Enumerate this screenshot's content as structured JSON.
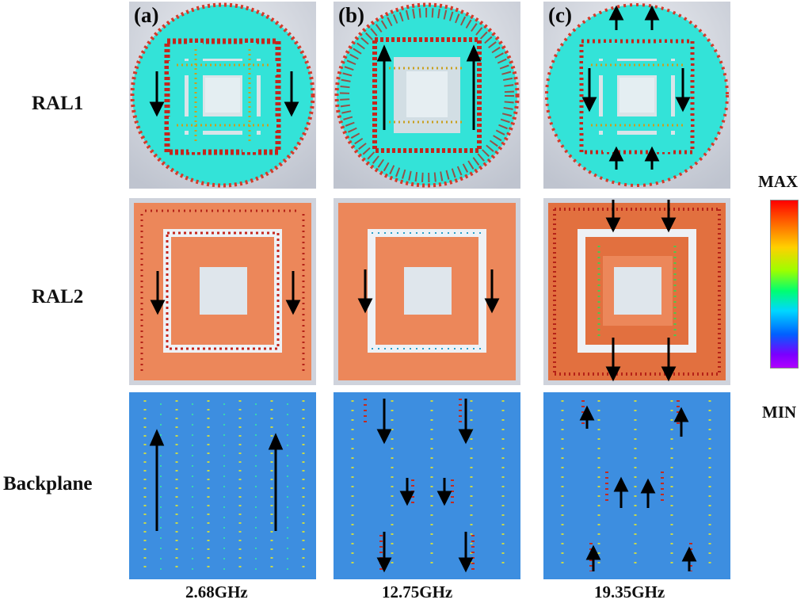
{
  "rows": [
    {
      "label": "RAL1",
      "icon": "circular-patch-current-map"
    },
    {
      "label": "RAL2",
      "icon": "square-ring-current-map"
    },
    {
      "label": "Backplane",
      "icon": "ground-plane-current-map"
    }
  ],
  "columns": [
    {
      "panel_label": "(a)",
      "frequency": "2.68GHz"
    },
    {
      "panel_label": "(b)",
      "frequency": "12.75GHz"
    },
    {
      "panel_label": "(c)",
      "frequency": "19.35GHz"
    }
  ],
  "legend": {
    "max_label": "MAX",
    "min_label": "MIN"
  },
  "colors": {
    "ral1_fill": "#33e3d8",
    "ral2_fill": "#ec875a",
    "ral2_fill_hot": "#e2703f",
    "backplane_fill": "#3d8ee0",
    "panel_bg": "#cfd3dc",
    "arrow": "#000000"
  }
}
